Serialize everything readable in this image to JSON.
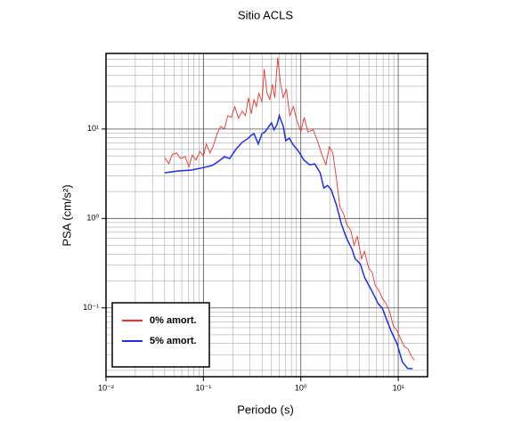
{
  "chart_data": {
    "type": "line",
    "title": "Sitio ACLS",
    "x_label": "Periodo (s)",
    "y_label": "PSA (cm/s²)",
    "log_x": true,
    "log_y": true,
    "xlim": [
      0.01,
      20
    ],
    "ylim": [
      0.017,
      70
    ],
    "xticks": [
      {
        "value": 0.01,
        "label": "10⁻²"
      },
      {
        "value": 0.1,
        "label": "10⁻¹"
      },
      {
        "value": 1,
        "label": "10⁰"
      },
      {
        "value": 10,
        "label": "10¹"
      }
    ],
    "yticks": [
      {
        "value": 0.1,
        "label": "10⁻¹"
      },
      {
        "value": 1,
        "label": "10⁰"
      },
      {
        "value": 10,
        "label": "10¹"
      }
    ],
    "grid": true,
    "minor_grid": true,
    "legend": "lower left",
    "series": [
      {
        "name": "0% amort.",
        "color": "#e8332e",
        "x": [
          0.04,
          0.044,
          0.048,
          0.053,
          0.058,
          0.065,
          0.071,
          0.077,
          0.084,
          0.092,
          0.1,
          0.107,
          0.117,
          0.127,
          0.138,
          0.151,
          0.164,
          0.178,
          0.194,
          0.21,
          0.229,
          0.25,
          0.27,
          0.29,
          0.31,
          0.33,
          0.35,
          0.37,
          0.4,
          0.42,
          0.45,
          0.48,
          0.51,
          0.54,
          0.58,
          0.62,
          0.66,
          0.71,
          0.77,
          0.84,
          0.91,
          1.0,
          1.08,
          1.18,
          1.34,
          1.52,
          1.66,
          1.81,
          1.96,
          2.13,
          2.32,
          2.52,
          2.75,
          2.97,
          3.25,
          3.52,
          3.8,
          4.2,
          4.5,
          4.95,
          5.4,
          5.8,
          6.3,
          6.9,
          7.5,
          8.2,
          8.9,
          9.7,
          10.6,
          11.5,
          12.5,
          13.6,
          14.6
        ],
        "values": [
          4.8,
          4.1,
          5.2,
          5.4,
          4.7,
          4.9,
          3.8,
          5.1,
          4.5,
          5.6,
          5.0,
          6.8,
          5.4,
          6.6,
          8.9,
          10.7,
          10.0,
          14.1,
          13.5,
          17.8,
          13.2,
          15.8,
          14.1,
          22.4,
          14.8,
          21.4,
          17.8,
          25.1,
          20.0,
          46.8,
          25.1,
          21.4,
          31.6,
          22.4,
          63,
          31.6,
          22.4,
          28.2,
          14.1,
          17.8,
          12.6,
          9.3,
          13.5,
          9.3,
          9.8,
          6.8,
          5.0,
          4.0,
          6.3,
          5.4,
          2.8,
          1.35,
          1.12,
          0.85,
          0.74,
          0.5,
          0.63,
          0.355,
          0.43,
          0.28,
          0.25,
          0.178,
          0.158,
          0.126,
          0.112,
          0.089,
          0.063,
          0.056,
          0.045,
          0.037,
          0.035,
          0.029,
          0.026
        ]
      },
      {
        "name": "5% amort.",
        "color": "#1f2ee0",
        "x": [
          0.04,
          0.055,
          0.075,
          0.1,
          0.122,
          0.14,
          0.164,
          0.186,
          0.215,
          0.25,
          0.285,
          0.31,
          0.33,
          0.365,
          0.4,
          0.43,
          0.47,
          0.5,
          0.53,
          0.57,
          0.6,
          0.66,
          0.7,
          0.76,
          0.84,
          0.95,
          1.08,
          1.23,
          1.39,
          1.58,
          1.72,
          1.88,
          2.05,
          2.32,
          2.62,
          2.97,
          3.36,
          3.6,
          4.08,
          4.5,
          5.0,
          5.6,
          6.2,
          6.9,
          7.7,
          8.5,
          9.7,
          11,
          12.5,
          14
        ],
        "values": [
          3.24,
          3.39,
          3.47,
          3.7,
          3.9,
          4.27,
          4.9,
          4.68,
          5.9,
          7.1,
          7.8,
          8.5,
          8.9,
          6.8,
          8.9,
          9.3,
          10.7,
          11.7,
          9.8,
          11.2,
          14.1,
          10.7,
          7.4,
          7.9,
          6.6,
          5.6,
          4.47,
          3.98,
          4.07,
          3.24,
          2.19,
          2.34,
          2.09,
          1.41,
          0.85,
          0.59,
          0.45,
          0.355,
          0.31,
          0.22,
          0.178,
          0.141,
          0.112,
          0.098,
          0.071,
          0.054,
          0.04,
          0.025,
          0.021,
          0.0209
        ]
      }
    ]
  }
}
